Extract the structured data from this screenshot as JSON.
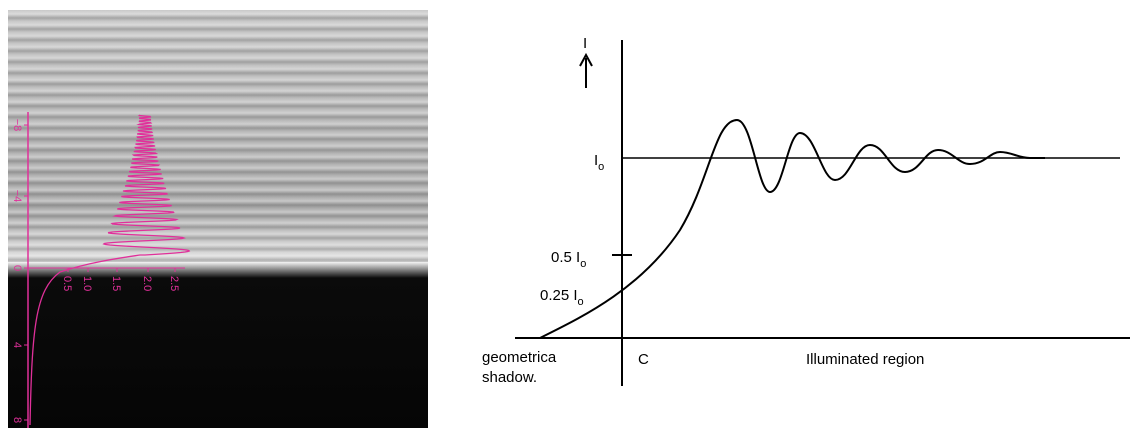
{
  "photo": {
    "vertical_ticks": [
      "−8",
      "−4",
      "0",
      "4",
      "8"
    ],
    "horizontal_ticks": [
      "0.5",
      "1.0",
      "1.5",
      "2.0",
      "2.5"
    ]
  },
  "diagram": {
    "axis_label": "I",
    "io_label": {
      "text": "I",
      "subscript": "o"
    },
    "half_label": {
      "text": "0.5 I",
      "subscript": "o"
    },
    "quarter_label": {
      "text": "0.25 I",
      "subscript": "o"
    },
    "shadow_label": [
      "geometrica",
      "shadow."
    ],
    "edge_label": "C",
    "region_label": "Illuminated region"
  }
}
